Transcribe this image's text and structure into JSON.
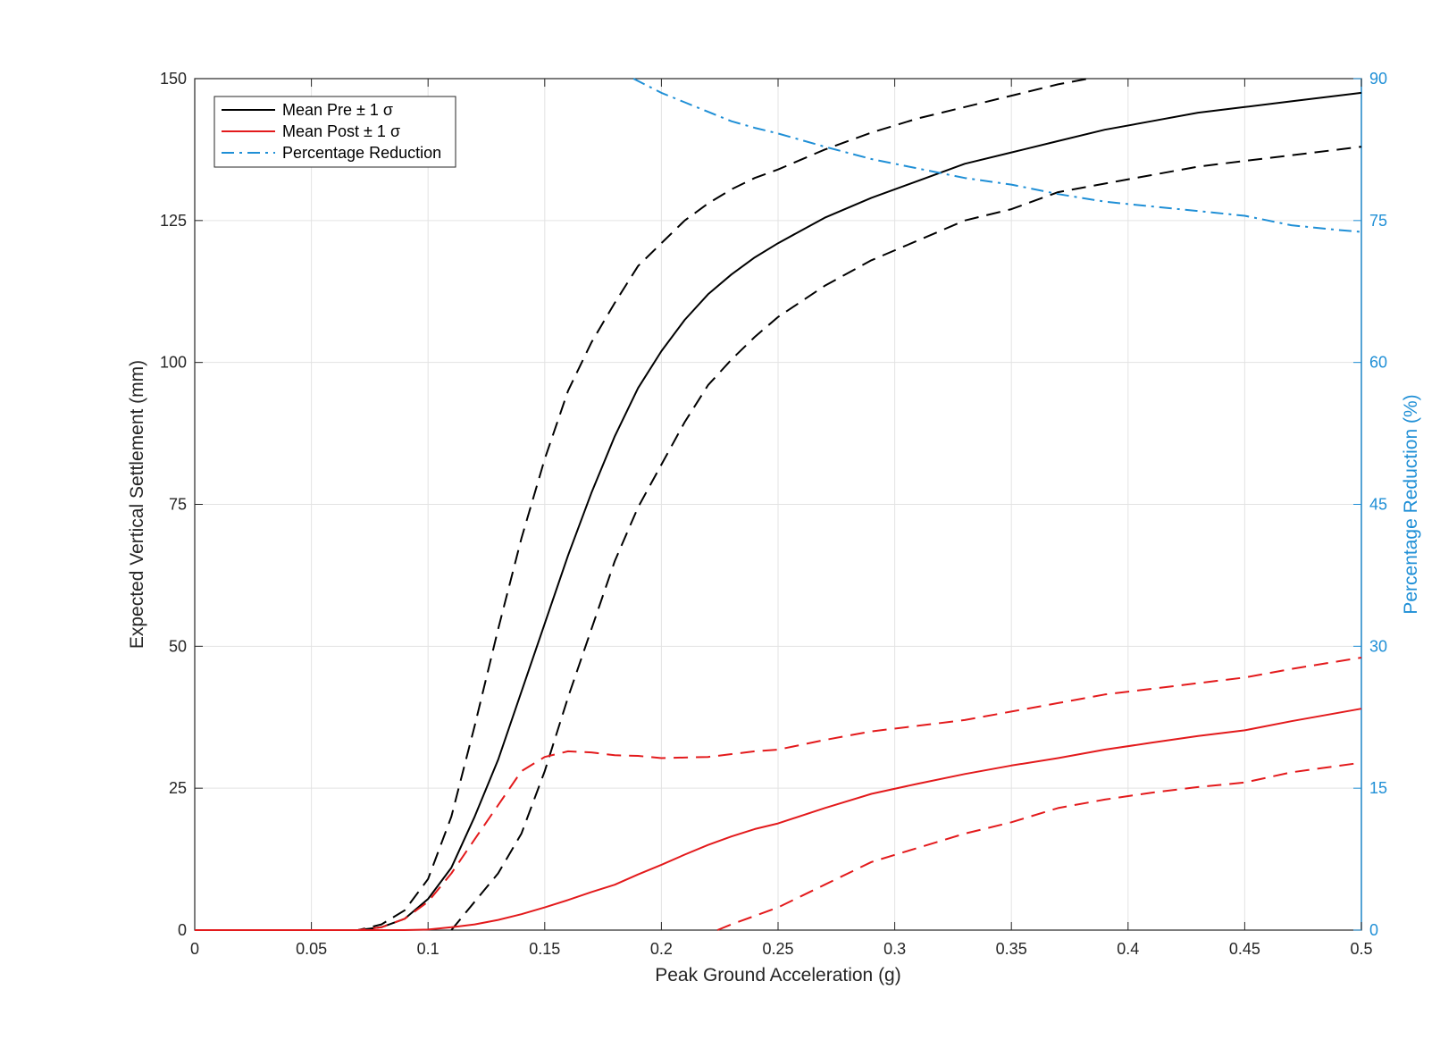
{
  "chart_data": {
    "type": "line",
    "title": "",
    "xlabel": "Peak Ground Acceleration (g)",
    "ylabel": "Expected Vertical Settlement (mm)",
    "y2label": "Percentage Reduction (%)",
    "xlim": [
      0,
      0.5
    ],
    "ylim": [
      0,
      150
    ],
    "y2lim": [
      0,
      90
    ],
    "xticks": [
      "0",
      "0.05",
      "0.1",
      "0.15",
      "0.2",
      "0.25",
      "0.3",
      "0.35",
      "0.4",
      "0.45",
      "0.5"
    ],
    "yticks": [
      "0",
      "25",
      "50",
      "75",
      "100",
      "125",
      "150"
    ],
    "y2ticks": [
      "0",
      "15",
      "30",
      "45",
      "60",
      "75",
      "90"
    ],
    "grid": true,
    "legend_position": "top-left",
    "legend": [
      {
        "label": "Mean Pre ± 1 σ",
        "color": "#000000",
        "style": "solid"
      },
      {
        "label": "Mean Post ± 1 σ",
        "color": "#e31a1c",
        "style": "solid"
      },
      {
        "label": "Percentage Reduction",
        "color": "#1f8fd6",
        "style": "dashdot"
      }
    ],
    "colors": {
      "pre": "#000000",
      "post": "#e31a1c",
      "reduction": "#1f8fd6"
    },
    "series": [
      {
        "key": "pre_mean",
        "axis": "left",
        "color": "#000000",
        "style": "solid",
        "x": [
          0,
          0.07,
          0.08,
          0.09,
          0.1,
          0.11,
          0.12,
          0.13,
          0.14,
          0.15,
          0.16,
          0.17,
          0.18,
          0.19,
          0.2,
          0.21,
          0.22,
          0.23,
          0.24,
          0.25,
          0.27,
          0.29,
          0.31,
          0.33,
          0.35,
          0.37,
          0.39,
          0.41,
          0.43,
          0.45,
          0.47,
          0.5
        ],
        "y": [
          0,
          0,
          0.5,
          2,
          5.5,
          11,
          20,
          30,
          42,
          54,
          66,
          77,
          87,
          95.5,
          102,
          107.5,
          112,
          115.5,
          118.5,
          121,
          125.5,
          129,
          132,
          135,
          137,
          139,
          141,
          142.5,
          144,
          145,
          146,
          147.5
        ]
      },
      {
        "key": "pre_upper",
        "axis": "left",
        "color": "#000000",
        "style": "dashed",
        "x": [
          0,
          0.07,
          0.08,
          0.09,
          0.1,
          0.11,
          0.12,
          0.13,
          0.14,
          0.15,
          0.16,
          0.17,
          0.18,
          0.19,
          0.2,
          0.21,
          0.22,
          0.23,
          0.24,
          0.25,
          0.27,
          0.29,
          0.31,
          0.33,
          0.35,
          0.37,
          0.383
        ],
        "y": [
          0,
          0,
          1,
          3.5,
          9,
          20,
          36,
          53,
          69,
          83,
          95,
          103.5,
          110.5,
          117,
          121,
          125,
          128,
          130.5,
          132.5,
          134,
          137.5,
          140.5,
          143,
          145,
          147,
          149,
          150
        ]
      },
      {
        "key": "pre_lower",
        "axis": "left",
        "color": "#000000",
        "style": "dashed",
        "x": [
          0.11,
          0.12,
          0.13,
          0.14,
          0.15,
          0.16,
          0.17,
          0.18,
          0.19,
          0.2,
          0.21,
          0.22,
          0.23,
          0.24,
          0.25,
          0.27,
          0.29,
          0.31,
          0.33,
          0.35,
          0.37,
          0.39,
          0.41,
          0.43,
          0.45,
          0.47,
          0.5
        ],
        "y": [
          0,
          5,
          10,
          17,
          28,
          41,
          53,
          65,
          74.5,
          82,
          89.5,
          96,
          100.5,
          104.5,
          108,
          113.5,
          118,
          121.5,
          125,
          127,
          130,
          131.5,
          133,
          134.5,
          135.5,
          136.5,
          138
        ]
      },
      {
        "key": "post_mean",
        "axis": "left",
        "color": "#e31a1c",
        "style": "solid",
        "x": [
          0,
          0.09,
          0.1,
          0.11,
          0.12,
          0.13,
          0.14,
          0.15,
          0.16,
          0.17,
          0.18,
          0.19,
          0.2,
          0.21,
          0.22,
          0.23,
          0.24,
          0.25,
          0.27,
          0.29,
          0.31,
          0.33,
          0.35,
          0.37,
          0.39,
          0.41,
          0.43,
          0.45,
          0.47,
          0.5
        ],
        "y": [
          0,
          0,
          0.1,
          0.5,
          1,
          1.8,
          2.8,
          4,
          5.3,
          6.7,
          8,
          9.8,
          11.5,
          13.3,
          15,
          16.5,
          17.8,
          18.8,
          21.5,
          24,
          25.8,
          27.5,
          29,
          30.3,
          31.8,
          33,
          34.2,
          35.2,
          36.8,
          39
        ]
      },
      {
        "key": "post_upper",
        "axis": "left",
        "color": "#e31a1c",
        "style": "dashed",
        "x": [
          0,
          0.07,
          0.08,
          0.09,
          0.1,
          0.11,
          0.12,
          0.13,
          0.14,
          0.15,
          0.16,
          0.17,
          0.18,
          0.19,
          0.2,
          0.22,
          0.24,
          0.25,
          0.27,
          0.29,
          0.31,
          0.33,
          0.35,
          0.37,
          0.39,
          0.41,
          0.43,
          0.45,
          0.47,
          0.5
        ],
        "y": [
          0,
          0,
          0.5,
          2,
          5,
          10,
          16,
          22,
          28,
          30.5,
          31.5,
          31.3,
          30.8,
          30.7,
          30.3,
          30.5,
          31.5,
          31.8,
          33.5,
          35,
          36,
          37,
          38.5,
          40,
          41.5,
          42.5,
          43.5,
          44.5,
          46,
          48
        ]
      },
      {
        "key": "post_lower",
        "axis": "left",
        "color": "#e31a1c",
        "style": "dashed",
        "x": [
          0.224,
          0.23,
          0.24,
          0.25,
          0.27,
          0.29,
          0.31,
          0.33,
          0.35,
          0.37,
          0.39,
          0.41,
          0.43,
          0.45,
          0.47,
          0.5
        ],
        "y": [
          0,
          1,
          2.5,
          4,
          8,
          12,
          14.5,
          17,
          19,
          21.5,
          23,
          24.2,
          25.2,
          26,
          27.8,
          29.5
        ]
      },
      {
        "key": "reduction",
        "axis": "right",
        "color": "#1f8fd6",
        "style": "dashdot",
        "x": [
          0.188,
          0.2,
          0.21,
          0.22,
          0.23,
          0.24,
          0.25,
          0.27,
          0.29,
          0.31,
          0.33,
          0.35,
          0.37,
          0.39,
          0.41,
          0.43,
          0.45,
          0.47,
          0.49,
          0.5
        ],
        "y": [
          90,
          88.5,
          87.5,
          86.5,
          85.5,
          84.8,
          84.2,
          82.8,
          81.5,
          80.5,
          79.5,
          78.8,
          77.8,
          77,
          76.5,
          76,
          75.5,
          74.5,
          74,
          73.8
        ]
      }
    ]
  }
}
